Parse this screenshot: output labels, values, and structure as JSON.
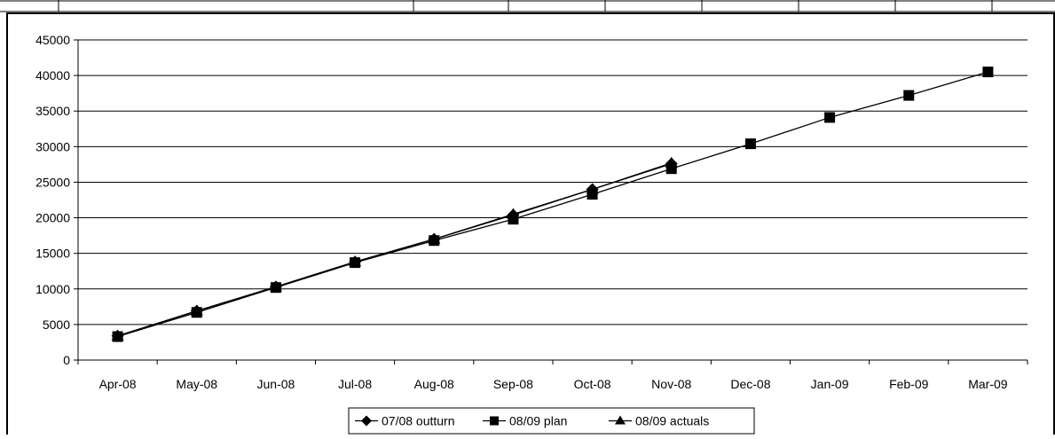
{
  "colors": {
    "background": "#ffffff",
    "line": "#000000",
    "gridline": "#000000",
    "marker": "#000000",
    "frame": "#000000"
  },
  "chart_data": {
    "type": "line",
    "title": "",
    "xlabel": "",
    "ylabel": "",
    "categories": [
      "Apr-08",
      "May-08",
      "Jun-08",
      "Jul-08",
      "Aug-08",
      "Sep-08",
      "Oct-08",
      "Nov-08",
      "Dec-08",
      "Jan-09",
      "Feb-09",
      "Mar-09"
    ],
    "ylim": [
      0,
      45000
    ],
    "yticks": [
      0,
      5000,
      10000,
      15000,
      20000,
      25000,
      30000,
      35000,
      40000,
      45000
    ],
    "grid": true,
    "legend_position": "bottom",
    "series": [
      {
        "name": "07/08 outturn",
        "marker": "diamond",
        "values": [
          3400,
          6900,
          10300,
          13800,
          17000,
          20400,
          24000,
          27600,
          null,
          null,
          null,
          null
        ]
      },
      {
        "name": "08/09 plan",
        "marker": "square",
        "values": [
          3300,
          6700,
          10200,
          13700,
          16800,
          19800,
          23300,
          26900,
          30400,
          34100,
          37200,
          40500
        ]
      },
      {
        "name": "08/09 actuals",
        "marker": "triangle",
        "values": [
          3400,
          6900,
          10300,
          13800,
          17000,
          20500,
          24000,
          27700,
          null,
          null,
          null,
          null
        ]
      }
    ]
  }
}
